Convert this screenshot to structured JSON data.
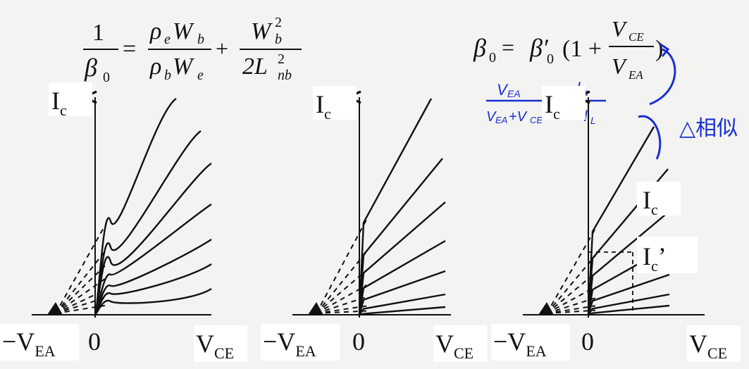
{
  "formula_left": {
    "lhs_num": "1",
    "lhs_den_symbol": "β",
    "lhs_den_sub": "0",
    "eq": "=",
    "t1_num": "ρ",
    "t1_num_sub1": "e",
    "t1_num_w": "W",
    "t1_num_sub2": "b",
    "t1_den": "ρ",
    "t1_den_sub1": "b",
    "t1_den_w": "W",
    "t1_den_sub2": "e",
    "plus": "+",
    "t2_num": "W",
    "t2_num_sub": "b",
    "t2_num_sup": "2",
    "t2_den": "2L",
    "t2_den_sub": "nb",
    "t2_den_sup": "2"
  },
  "formula_right": {
    "beta": "β",
    "beta_sub": "0",
    "eq": "=",
    "beta_prime": "β′",
    "beta_prime_sub": "0",
    "open": "(1 +",
    "frac_num": "V",
    "frac_num_sub": "CE",
    "frac_den": "V",
    "frac_den_sub": "EA",
    "close": ")"
  },
  "handwriting": {
    "num_left": "V",
    "num_left_sub": "EA",
    "den_left": "V",
    "den_left_sub": "EA",
    "den_left_tail": "+V",
    "den_left_tail_sub": "CE",
    "eq": "=",
    "num_right": "I",
    "num_right_sub": "c",
    "den_right": "I",
    "den_right_sub": "L",
    "note": "△相似",
    "ink_color": "#1a2fd0"
  },
  "panels": [
    {
      "y_label": "I",
      "y_label_sub": "c",
      "neg_label": "−V",
      "neg_label_sub": "EA",
      "zero_label": "0",
      "x_label": "V",
      "x_label_sub": "CE"
    },
    {
      "y_label": "I",
      "y_label_sub": "c",
      "neg_label": "−V",
      "neg_label_sub": "EA",
      "zero_label": "0",
      "x_label": "V",
      "x_label_sub": "CE"
    },
    {
      "y_label": "I",
      "y_label_sub": "c",
      "neg_label": "−V",
      "neg_label_sub": "EA",
      "zero_label": "0",
      "x_label": "V",
      "x_label_sub": "CE",
      "marker_top": "I",
      "marker_top_sub": "c",
      "marker_bottom": "I",
      "marker_bottom_sub": "c",
      "marker_bottom_prime": "’"
    }
  ],
  "colors": {
    "ink": "#111111",
    "paper": "#f3f3f1",
    "label_bg": "#ffffff"
  }
}
